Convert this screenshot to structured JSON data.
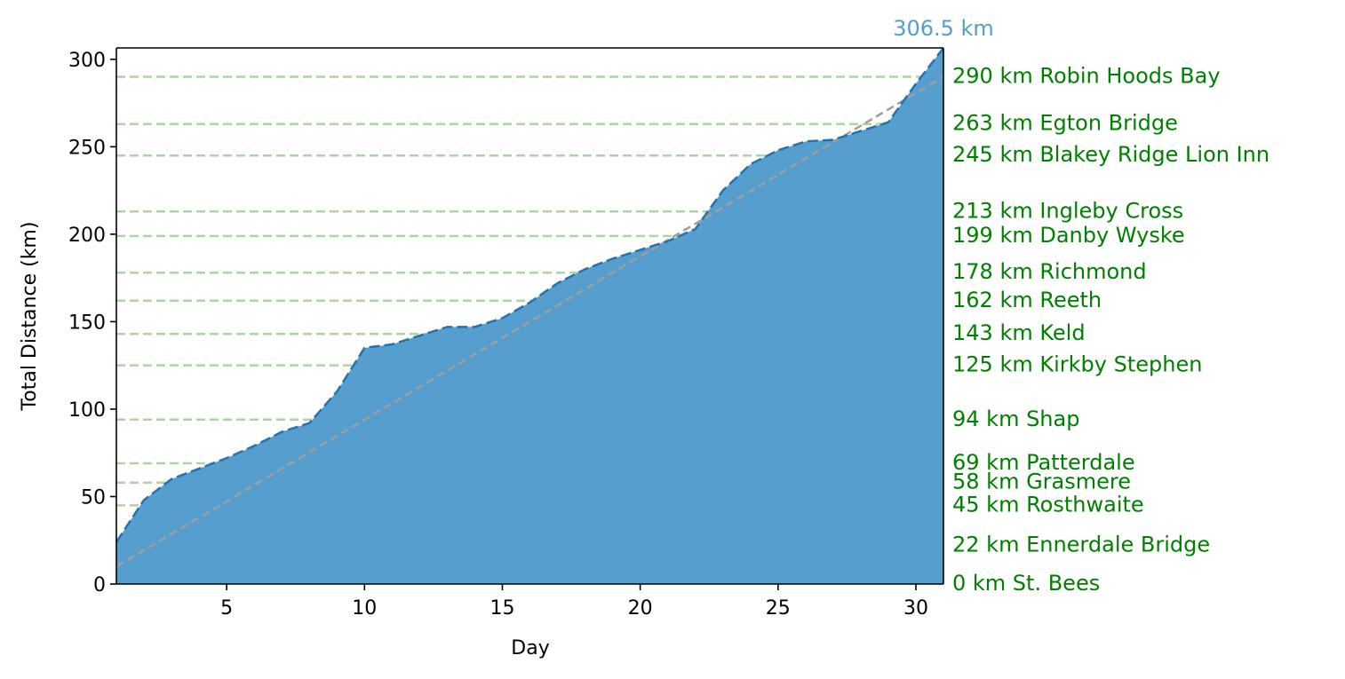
{
  "chart_data": {
    "type": "area",
    "title": "",
    "xlabel": "Day",
    "ylabel": "Total Distance (km)",
    "xlim": [
      1,
      31
    ],
    "ylim": [
      0,
      306.5
    ],
    "x_ticks": [
      5,
      10,
      15,
      20,
      25,
      30
    ],
    "y_ticks": [
      0,
      50,
      100,
      150,
      200,
      250,
      300
    ],
    "grid": false,
    "legend": "none",
    "colors": {
      "area_fill": "#559ecd",
      "cumulative_line": "#2273b5",
      "trend_line": "#9e9e9e",
      "landmark_line": "#abd6a4",
      "landmark_text": "#008000",
      "total_text": "#559ecd"
    },
    "x": [
      1,
      2,
      3,
      4,
      5,
      6,
      7,
      8,
      9,
      10,
      11,
      12,
      13,
      14,
      15,
      16,
      17,
      18,
      19,
      20,
      21,
      22,
      23,
      24,
      25,
      26,
      27,
      28,
      29,
      30,
      31
    ],
    "series": [
      {
        "values": [
          24,
          48,
          60,
          66,
          72,
          79,
          87,
          92,
          110,
          135,
          137,
          142,
          147,
          147,
          152,
          161,
          172,
          180,
          186,
          191,
          196,
          203,
          225,
          240,
          248,
          253,
          254,
          259,
          264,
          286,
          306.5
        ]
      }
    ],
    "trend_line": {
      "x": [
        1,
        31
      ],
      "y": [
        10,
        290
      ],
      "style": "dashed"
    },
    "total_annotation": "306.5 km",
    "landmarks": [
      {
        "km": 0,
        "label": "0 km St. Bees"
      },
      {
        "km": 22,
        "label": "22 km Ennerdale Bridge"
      },
      {
        "km": 45,
        "label": "45 km Rosthwaite"
      },
      {
        "km": 58,
        "label": "58 km Grasmere"
      },
      {
        "km": 69,
        "label": "69 km Patterdale"
      },
      {
        "km": 94,
        "label": "94 km Shap"
      },
      {
        "km": 125,
        "label": "125 km Kirkby Stephen"
      },
      {
        "km": 143,
        "label": "143 km Keld"
      },
      {
        "km": 162,
        "label": "162 km Reeth"
      },
      {
        "km": 178,
        "label": "178 km Richmond"
      },
      {
        "km": 199,
        "label": "199 km Danby Wyske"
      },
      {
        "km": 213,
        "label": "213 km Ingleby Cross"
      },
      {
        "km": 245,
        "label": "245 km Blakey Ridge Lion Inn"
      },
      {
        "km": 263,
        "label": "263 km Egton Bridge"
      },
      {
        "km": 290,
        "label": "290 km Robin Hoods Bay"
      }
    ]
  }
}
